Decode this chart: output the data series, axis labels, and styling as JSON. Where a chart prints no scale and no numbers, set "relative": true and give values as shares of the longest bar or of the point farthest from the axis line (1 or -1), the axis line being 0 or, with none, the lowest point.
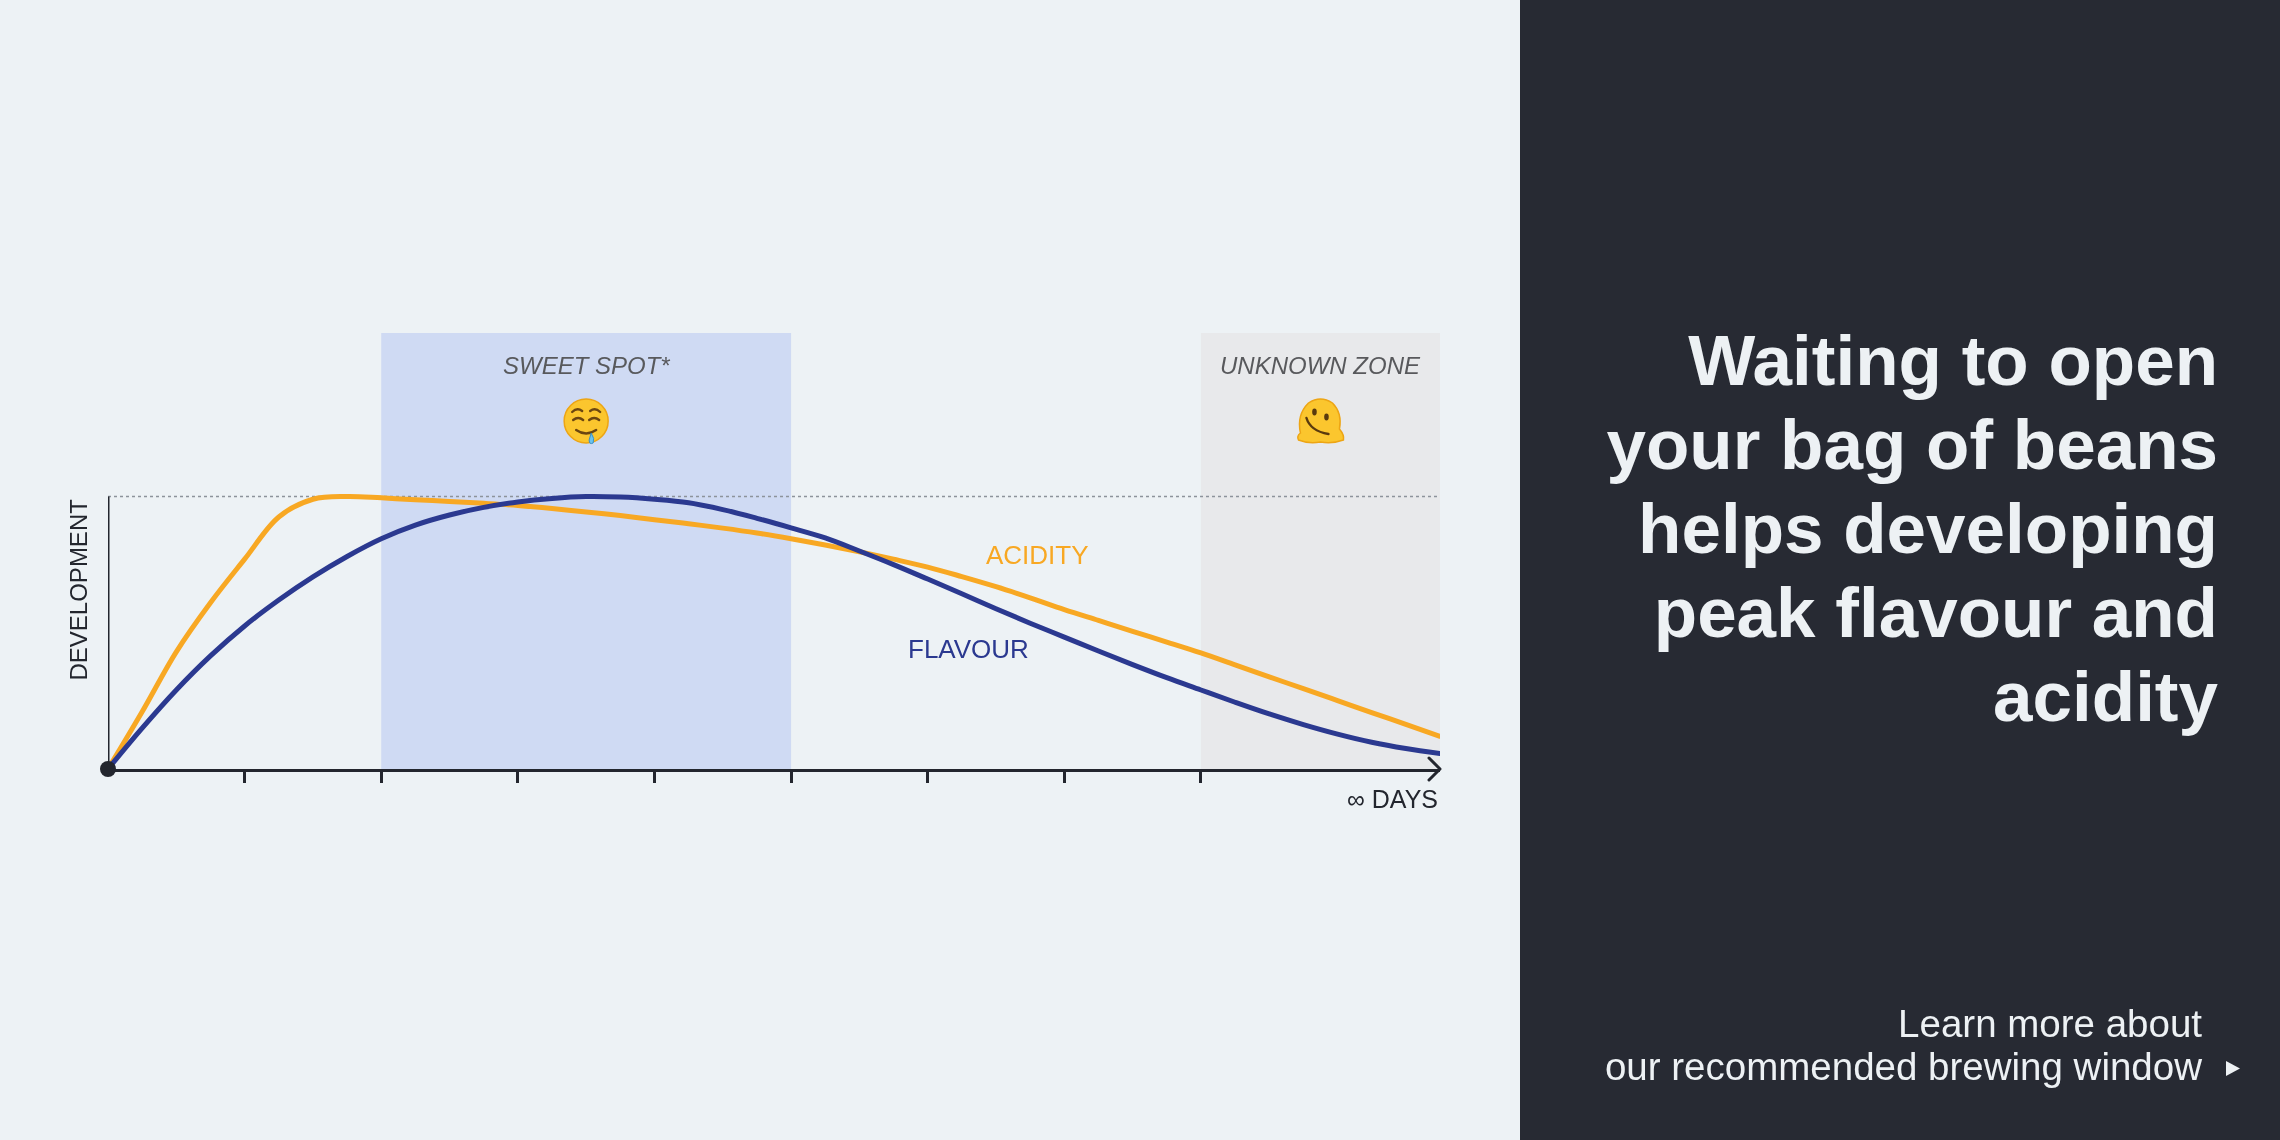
{
  "chart_data": {
    "type": "line",
    "title": "Waiting to open\nyour bag of beans\nhelps developing\npeak flavour and\nacidity",
    "xlabel": "∞ DAYS",
    "ylabel": "DEVELOPMENT",
    "relative": true,
    "categories": [
      null,
      null,
      null,
      null,
      null,
      null,
      null,
      null,
      null,
      null,
      null,
      null,
      null,
      null,
      null,
      null,
      null,
      null,
      null,
      null,
      null,
      null,
      null,
      null,
      null,
      null,
      null,
      null,
      null,
      null,
      null,
      null,
      null,
      null,
      null,
      null,
      null,
      null,
      null,
      null
    ],
    "series": [
      {
        "name": "ACIDITY",
        "color": "#f8a823",
        "values": [
          0,
          0.21,
          0.43,
          0.61,
          0.77,
          0.925,
          0.99,
          1.0,
          0.995,
          0.988,
          0.982,
          0.975,
          0.967,
          0.956,
          0.943,
          0.93,
          0.915,
          0.9,
          0.884,
          0.866,
          0.845,
          0.822,
          0.797,
          0.77,
          0.741,
          0.706,
          0.669,
          0.628,
          0.585,
          0.545,
          0.505,
          0.466,
          0.426,
          0.382,
          0.338,
          0.295,
          0.251,
          0.207,
          0.164,
          0.12
        ]
      },
      {
        "name": "FLAVOUR",
        "color": "#2b3990",
        "values": [
          0,
          0.15,
          0.29,
          0.415,
          0.525,
          0.62,
          0.705,
          0.78,
          0.845,
          0.895,
          0.932,
          0.96,
          0.98,
          0.993,
          1.0,
          0.998,
          0.99,
          0.977,
          0.952,
          0.92,
          0.885,
          0.848,
          0.8,
          0.75,
          0.697,
          0.643,
          0.588,
          0.535,
          0.484,
          0.433,
          0.383,
          0.335,
          0.29,
          0.245,
          0.202,
          0.163,
          0.128,
          0.098,
          0.075,
          0.057
        ]
      }
    ],
    "ref_lines": [
      {
        "axis": "y",
        "value": 1,
        "color": "#8d939b",
        "line_style": "dotted"
      }
    ],
    "annotations": [
      "SWEET SPOT*",
      "UNKNOWN ZONE",
      "Learn more about\nour recommended brewing window"
    ]
  }
}
